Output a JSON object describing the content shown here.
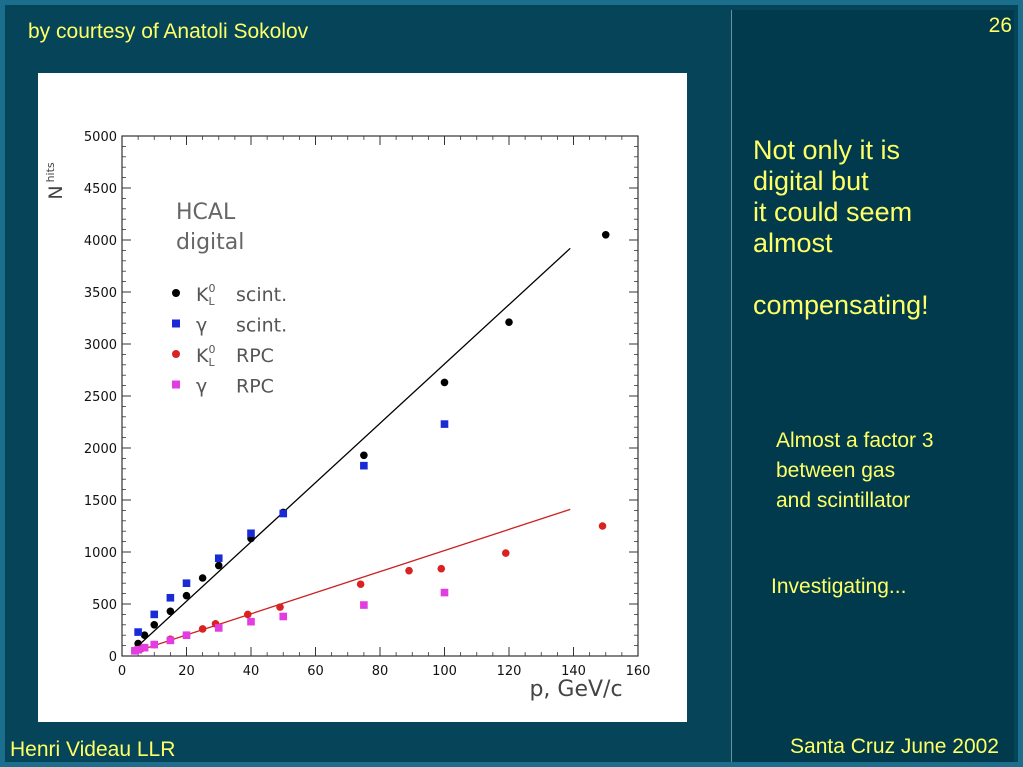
{
  "slide": {
    "credit": "by courtesy of Anatoli Sokolov",
    "page_number": "26",
    "author": "Henri Videau  LLR",
    "venue": "Santa Cruz June 2002",
    "main_message": "Not only it is\ndigital but\nit could seem\nalmost\n\ncompensating!",
    "factor_note": "Almost a factor 3\nbetween gas\nand scintillator",
    "investigating": "Investigating..."
  },
  "colors": {
    "text_yellow": "#ffff66",
    "kl_scint": "#000000",
    "gamma_scint": "#1a2bd6",
    "kl_rpc": "#d92222",
    "gamma_rpc": "#e23de0",
    "fit_scint": "#000000",
    "fit_rpc": "#cc2020"
  },
  "chart_data": {
    "type": "scatter",
    "title": "",
    "xlabel": "p, GeV/c",
    "ylabel_main": "N",
    "ylabel_sub": "hits",
    "xlim": [
      0,
      160
    ],
    "ylim": [
      0,
      5000
    ],
    "xticks": [
      0,
      20,
      40,
      60,
      80,
      100,
      120,
      140,
      160
    ],
    "yticks": [
      0,
      500,
      1000,
      1500,
      2000,
      2500,
      3000,
      3500,
      4000,
      4500,
      5000
    ],
    "annotation": [
      "HCAL",
      "digital"
    ],
    "legend_placement": "upper-left",
    "series": [
      {
        "name": "scint.",
        "particle": "K",
        "particle_sup": "0",
        "particle_sub": "L",
        "marker": "circle",
        "color": "#000000",
        "x": [
          5,
          7,
          10,
          15,
          20,
          25,
          30,
          40,
          50,
          75,
          100,
          120,
          150
        ],
        "y": [
          120,
          200,
          300,
          430,
          580,
          750,
          870,
          1130,
          1380,
          1930,
          2630,
          3210,
          4050
        ]
      },
      {
        "name": "scint.",
        "particle": "γ",
        "marker": "square",
        "color": "#1a2bd6",
        "x": [
          5,
          10,
          15,
          20,
          30,
          40,
          50,
          75,
          100
        ],
        "y": [
          230,
          400,
          560,
          700,
          940,
          1180,
          1370,
          1830,
          2230
        ]
      },
      {
        "name": "RPC",
        "particle": "K",
        "particle_sup": "0",
        "particle_sub": "L",
        "marker": "circle",
        "color": "#d92222",
        "x": [
          4,
          5,
          6,
          7,
          10,
          15,
          20,
          25,
          29,
          39,
          49,
          74,
          89,
          99,
          119,
          149
        ],
        "y": [
          50,
          60,
          70,
          80,
          110,
          160,
          200,
          260,
          310,
          400,
          470,
          690,
          820,
          840,
          990,
          1250
        ]
      },
      {
        "name": "RPC",
        "particle": "γ",
        "marker": "square",
        "color": "#e23de0",
        "x": [
          4,
          5,
          7,
          10,
          15,
          20,
          30,
          40,
          50,
          75,
          100
        ],
        "y": [
          50,
          60,
          80,
          110,
          150,
          200,
          270,
          330,
          380,
          490,
          610
        ]
      }
    ],
    "fits": [
      {
        "series": "scint.",
        "color": "#000000",
        "x": [
          4,
          139
        ],
        "y": [
          70,
          3920
        ]
      },
      {
        "series": "RPC",
        "color": "#cc2020",
        "x": [
          4,
          139
        ],
        "y": [
          40,
          1410
        ]
      }
    ]
  }
}
